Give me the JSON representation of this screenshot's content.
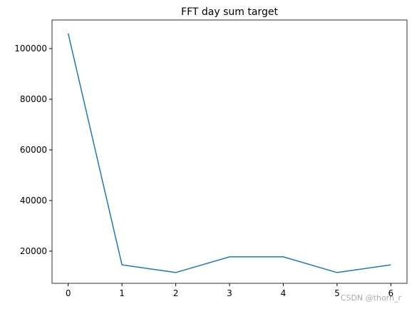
{
  "chart_data": {
    "type": "line",
    "title": "FFT day sum target",
    "x": [
      0,
      1,
      2,
      3,
      4,
      5,
      6
    ],
    "series": [
      {
        "name": "target",
        "color": "#1f77b4",
        "values": [
          106000,
          14600,
          11550,
          17750,
          17750,
          11550,
          14600
        ]
      }
    ],
    "xlim": [
      -0.3,
      6.3
    ],
    "xticks": [
      0,
      1,
      2,
      3,
      4,
      5,
      6
    ],
    "ylim": [
      7300,
      111300
    ],
    "yticks": [
      20000,
      40000,
      60000,
      80000,
      100000
    ],
    "watermark": "CSDN @thorn_r"
  }
}
